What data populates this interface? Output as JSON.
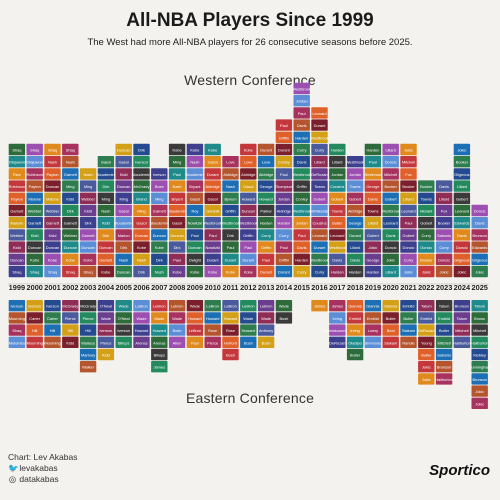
{
  "title": "All-NBA Players Since 1999",
  "subtitle": "The West had more All-NBA players for 26 consecutive seasons before 2025.",
  "footer": {
    "credit": "Chart: Lev Akabas",
    "twitter": "levakabas",
    "instagram": "datakabas",
    "brand": "Sportico"
  },
  "chart_data": {
    "type": "bar",
    "title": "All-NBA Players Since 1999",
    "categories": [
      "1999",
      "2000",
      "2001",
      "2002",
      "2003",
      "2004",
      "2005",
      "2006",
      "2007",
      "2008",
      "2009",
      "2010",
      "2011",
      "2012",
      "2013",
      "2014",
      "2015",
      "2016",
      "2017",
      "2018",
      "2019",
      "2020",
      "2021",
      "2022",
      "2023",
      "2024",
      "2025"
    ],
    "series": [
      {
        "name": "Western Conference",
        "values": [
          11,
          11,
          11,
          11,
          9,
          10,
          11,
          11,
          9,
          11,
          11,
          11,
          10,
          11,
          11,
          13,
          16,
          14,
          11,
          10,
          11,
          11,
          11,
          8,
          8,
          11,
          6
        ]
      },
      {
        "name": "Eastern Conference",
        "values": [
          4,
          4,
          4,
          4,
          6,
          5,
          4,
          4,
          6,
          4,
          4,
          4,
          5,
          4,
          4,
          2,
          0,
          1,
          4,
          5,
          4,
          4,
          4,
          7,
          7,
          4,
          9
        ]
      }
    ],
    "west_rows": [
      [
        "Shaq",
        "Shaq",
        "Shaq",
        "Shaq",
        "Shaq",
        "Kobe",
        "Duncan",
        "Dirk",
        "Nash",
        "Kobe",
        "Kobe",
        "Kobe",
        "Kobe",
        "Kobe",
        "Durant",
        "Durant",
        "Curry",
        "Curry",
        "Harden",
        "Harden",
        "Harden",
        "Lillard",
        "Jokic",
        "Jokic",
        "Jokic",
        "Jokic",
        "Jokic"
      ],
      [
        "Duncan",
        "Kobe",
        "Kobe",
        "Kobe",
        "Kobe",
        "Garnett",
        "Nash",
        "Nash",
        "Dirk",
        "Paul",
        "Dwight",
        "Durant",
        "Durant",
        "Durant",
        "Paul",
        "Griffin",
        "Harden",
        "Westbrook",
        "Davis",
        "Davis",
        "George",
        "Jokic",
        "Curry",
        "Booker",
        "Doncic",
        "Gilgeous",
        "Gilgeous"
      ],
      [
        "Kidd",
        "Duncan",
        "Duncan",
        "Duncan",
        "Duncan",
        "Duncan",
        "Dirk",
        "Kobe",
        "Kobe",
        "Dirk",
        "Duncan",
        "Nowitzki",
        "Paul",
        "Paul",
        "Griffin",
        "Paul",
        "Davis",
        "Durant",
        "Westbrook",
        "Lillard",
        "Jokic",
        "Doncic",
        "Doncic",
        "Doncic",
        "Curry",
        "Doncic",
        "Edwards"
      ],
      [
        "Webber",
        "Kidd",
        "Kidd",
        "Webber",
        "Garnett",
        "Dirk",
        "Marion",
        "Duncan",
        "Duncan",
        "Duncan",
        "Paul",
        "Paul",
        "Dirk",
        "Griffin",
        "Curry",
        "Curry",
        "Paul",
        "Leonard",
        "Leonard",
        "Durant",
        "Gobert",
        "Davis",
        "Gobert",
        "Curry",
        "Sabonis",
        "Davis",
        "Brunson"
      ],
      [
        "Malone",
        "Garnett",
        "Garnett",
        "Garnett",
        "Dirk",
        "Kidd",
        "Stoudemire",
        "Gasol",
        "Stoudemire",
        "Gasol",
        "Nowitzki",
        "Westbrook",
        "Westbrook",
        "Westbrook",
        "Harden",
        "Harden",
        "Jordan",
        "Cousins",
        "Butler",
        "George",
        "Lillard",
        "Leonard",
        "Paul",
        "Gobert",
        "Booker",
        "Edwards",
        "Davis"
      ],
      [
        "Garnett",
        "Webber",
        "Webber",
        "Dirk",
        "Kidd",
        "Nash",
        "Gasol",
        "Ming",
        "Garnett",
        "Stoudemire",
        "Roy",
        "Ginobili",
        "Griffin",
        "Duncan",
        "Parker",
        "Aldridge",
        "Westbrook",
        "Whiteside",
        "Towns",
        "Aldridge",
        "Towns",
        "Westbrook",
        "Leonard",
        "Morant",
        "Fox",
        "Leonard",
        "Doncic"
      ],
      [
        "Payton",
        "Malone",
        "Malone",
        "Kidd",
        "Webber",
        "Ming",
        "Ming",
        "Brand",
        "Ming",
        "Bryant",
        "Gasol",
        "Gasol",
        "Bynum",
        "Howard",
        "Howard",
        "Jordan",
        "Conley",
        "Gobert",
        "Gobert",
        "Gobert",
        "Davis",
        "Gobert",
        "Lillard",
        "Towns",
        "Lillard",
        "Gobert",
        "Wembanyama"
      ],
      [
        "Robinson",
        "Payton",
        "Duncan",
        "Ming",
        "Ming",
        "Dirk",
        "Duncan",
        "McGrady",
        "Bosh",
        "Nash",
        "Bryant",
        "Aldridge",
        "Nash",
        "Gasol",
        "George",
        "Thompson",
        "Griffin",
        "Towns",
        "Cousins",
        "Towns",
        "George",
        "Booker",
        "Booker",
        "Booker",
        "Davis",
        "Lillard",
        "Jokic"
      ],
      [
        "Rice",
        "Robinson",
        "Payton",
        "Garnett",
        "Nash",
        "Stoudemire",
        "Kidd",
        "Stoudemire",
        "Iverson",
        "Paul",
        "Stoudemire",
        "Durant",
        "Aldridge",
        "Aldridge",
        "Aldridge",
        "Paul",
        "Westbrook",
        "DeRozan",
        "Jordan",
        "Jordan",
        "Westbrook",
        "Mitchell",
        "Fox",
        "Curry",
        "Edwards",
        "Gilgeous",
        "Curry"
      ],
      [
        "Olajuwon",
        "Olajuwon",
        "Nash",
        "Nash",
        "Marion",
        "Gasol",
        "Gasol",
        "Iverson",
        "Gasol",
        "Ming",
        "Nash",
        "Gasol",
        "Love",
        "Love",
        "Love",
        "Conley",
        "Davis",
        "Lillard",
        "Lillard",
        "Westbrook",
        "Paul",
        "Doncic",
        "Mitchell",
        "Lillard",
        "Antetokounmpo",
        "Booker",
        "Sabonis"
      ]
    ],
    "east_rows": [
      [
        "Iverson",
        "Iverson",
        "Iverson",
        "McGrady",
        "McGrady",
        "O'Neal",
        "Wade",
        "LeBron",
        "LeBron",
        "LeBron",
        "Wade",
        "LeBron",
        "LeBron",
        "LeBron",
        "LeBron",
        "Wade",
        "James",
        "James",
        "James",
        "Giannis",
        "Giannis",
        "Giannis",
        "Embiid",
        "Tatum",
        "Tatum",
        "Brunson",
        "Tatum"
      ],
      [
        "Mourning",
        "Carter",
        "Carter",
        "Pierce",
        "Pierce",
        "Wade",
        "O'Neal",
        "Wade",
        "Wade",
        "Wade",
        "Howard",
        "Howard",
        "Howard",
        "Wade",
        "Wade",
        "Bosh",
        "Lowry",
        "Irving",
        "Irving",
        "Embiid",
        "Embiid",
        "Butler",
        "Butler",
        "Embiid",
        "Embiid",
        "Tatum",
        "Brown"
      ],
      [
        "Shaq",
        "Hill",
        "Hill",
        "Hill",
        "Hill",
        "Iverson",
        "Iverson",
        "Howard",
        "Howard",
        "Bosh",
        "LeBron",
        "Rose",
        "Rose",
        "Howard",
        "Anthony",
        "Noah",
        "Wall",
        "DeRozan",
        "Antetokounmpo",
        "Irving",
        "Lowry",
        "Beal",
        "Siakam",
        "DeRozan",
        "Butler",
        "Mitchell",
        "Mitchell"
      ],
      [
        "Mutombo",
        "Mourning",
        "Mourning",
        "Kidd",
        "Wallace",
        "Pierce",
        "Billups",
        "Arenas",
        "Arenas",
        "Allen",
        "Paul",
        "Pierce",
        "Horford",
        "Bosh",
        "Bosh",
        "George",
        "Horford",
        "Butler",
        "DeRozan",
        "Oladipo",
        "Simmons",
        "Siakam",
        "Randle",
        "Young",
        "Mitchell",
        "Haliburton",
        "Haliburton"
      ],
      [
        "Allen",
        "Allen",
        "Allen",
        "Wallace",
        "Marbury",
        "Kidd",
        "Wallace",
        "Billups",
        "Billups",
        "Howard",
        "Bosh",
        "Wade",
        "Bosh",
        "Deng",
        "George",
        "Anthony",
        "Anthony",
        "Lowry",
        "Lowry",
        "Butler",
        "Kemba",
        "Tatum",
        "Young",
        "Butler",
        "Sabonis",
        "Mobley",
        "Mobley"
      ],
      [
        "Hill",
        "Mourning",
        "Hill",
        "Walker",
        "Walker",
        "Carter",
        "James",
        "James",
        "James",
        "Billups",
        "Bosh",
        "Bosh",
        "Wade",
        "Noah",
        "Irving",
        "Irving",
        "Lowry",
        "Wall",
        "Walker",
        "Lowry",
        "Walker",
        "Brown",
        "LaVine",
        "Jokic",
        "Brunson",
        "Cunningham",
        "Cunningham"
      ],
      [
        "Mourning",
        "Marbury",
        "Mutombo",
        "Brand",
        "Iverson",
        "Marbury",
        "Bosh",
        "Arenas",
        "Bosh",
        "Pierce",
        "Pierce",
        "Horford",
        "Deng",
        "Irving",
        "Noah",
        "Horford",
        "Horford",
        "Thomas",
        "Giannis",
        "Lowry",
        "Embiid",
        "Simmons",
        "Irving",
        "Jokic",
        "Haliburton",
        "Brunson",
        "Brunson"
      ],
      [
        "Hill",
        "Mourning",
        "Mourning",
        "Carter",
        "Carter",
        "Billups",
        "Billups",
        "Bosh",
        "Bosh",
        "Rose",
        "Pierce",
        "Stoudemire",
        "Bosh",
        "Bosh",
        "Bosh",
        "Wall",
        "Wall",
        "Wall",
        "Jordan",
        "DeRozan",
        "Siakam",
        "Tatum",
        "Butler",
        "Randle",
        "Tatum",
        "Brunson",
        "Jokic"
      ],
      [
        "Mutombo",
        "Hill",
        "Carter",
        "McGrady",
        "McGrady",
        "Wallace",
        "Bosh",
        "James",
        "Bosh",
        "Rose",
        "Rose",
        "Rose",
        "Rose",
        "Irving",
        "George",
        "Irving",
        "Thomas",
        "Thomas",
        "Oladipo",
        "Irving",
        "Butler",
        "Butler",
        "Beal",
        "Young",
        "Mitchell",
        "Giannis",
        "Jokic"
      ]
    ]
  }
}
